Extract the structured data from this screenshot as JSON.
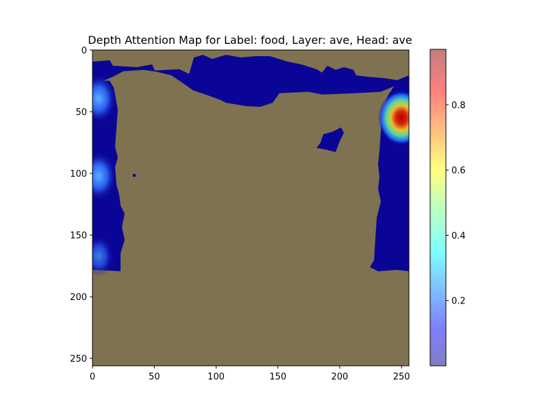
{
  "chart_data": {
    "type": "heatmap",
    "title": "Depth Attention Map for Label: food, Layer: ave, Head: ave",
    "xlabel": "",
    "ylabel": "",
    "xlim": [
      0,
      256
    ],
    "ylim": [
      256,
      0
    ],
    "x_ticks": [
      0,
      50,
      100,
      150,
      200,
      250
    ],
    "y_ticks": [
      0,
      50,
      100,
      150,
      200,
      250
    ],
    "x_tick_labels": [
      "0",
      "50",
      "100",
      "150",
      "200",
      "250"
    ],
    "y_tick_labels": [
      "0",
      "50",
      "100",
      "150",
      "200",
      "250"
    ],
    "colorbar": {
      "colormap": "jet",
      "alpha": 0.5,
      "range": [
        0.0,
        0.97
      ],
      "ticks": [
        0.2,
        0.4,
        0.6,
        0.8
      ],
      "tick_labels": [
        "0.2",
        "0.4",
        "0.6",
        "0.8"
      ]
    },
    "background_color": "#7f7250",
    "low_attention_color": "#0a0596",
    "hotspots": [
      {
        "x": 250,
        "y": 55,
        "value": 0.97
      },
      {
        "x": 5,
        "y": 40,
        "value": 0.3
      },
      {
        "x": 5,
        "y": 102,
        "value": 0.28
      },
      {
        "x": 5,
        "y": 168,
        "value": 0.22
      }
    ]
  }
}
